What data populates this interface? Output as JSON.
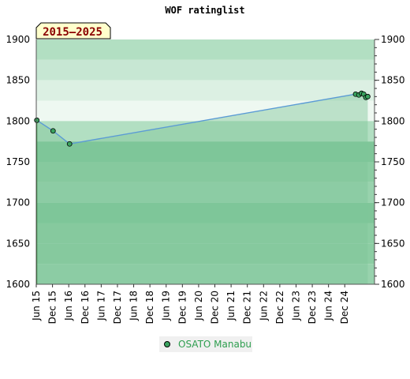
{
  "chart_data": {
    "type": "line",
    "title": "WOF ratinglist",
    "badge": "2015–2025",
    "ylim": [
      1600,
      1900
    ],
    "yticks": [
      1600,
      1650,
      1700,
      1750,
      1800,
      1850,
      1900
    ],
    "x_tick_labels": [
      "Jun 15",
      "Dec 15",
      "Jun 16",
      "Dec 16",
      "Jun 17",
      "Dec 17",
      "Jun 18",
      "Dec 18",
      "Jun 19",
      "Dec 19",
      "Jun 20",
      "Dec 20",
      "Jun 21",
      "Dec 21",
      "Jun 22",
      "Dec 22",
      "Jun 23",
      "Dec 23",
      "Jun 24",
      "Dec 24"
    ],
    "x_tick_months": [
      0,
      6,
      12,
      18,
      24,
      30,
      36,
      42,
      48,
      54,
      60,
      66,
      72,
      78,
      84,
      90,
      96,
      102,
      108,
      114
    ],
    "x_range_months": [
      0,
      125
    ],
    "series": [
      {
        "name": "OSATO Manabu",
        "points": [
          {
            "month": 0.2,
            "rating": 1801
          },
          {
            "month": 6.2,
            "rating": 1788
          },
          {
            "month": 12.3,
            "rating": 1772
          },
          {
            "month": 118.0,
            "rating": 1833
          },
          {
            "month": 119.2,
            "rating": 1832
          },
          {
            "month": 120.2,
            "rating": 1834
          },
          {
            "month": 121.0,
            "rating": 1833
          },
          {
            "month": 121.8,
            "rating": 1829
          },
          {
            "month": 122.5,
            "rating": 1830
          }
        ]
      }
    ],
    "bands": [
      {
        "from": 1875,
        "to": 1900,
        "color": "#b2dfc2"
      },
      {
        "from": 1850,
        "to": 1875,
        "color": "#c7e7d3"
      },
      {
        "from": 1825,
        "to": 1850,
        "color": "#dcf0e3"
      },
      {
        "from": 1800,
        "to": 1825,
        "color": "#eef8f1"
      },
      {
        "from": 1775,
        "to": 1800,
        "color": "#b2dfc2"
      },
      {
        "from": 1750,
        "to": 1775,
        "color": "#7fc699"
      },
      {
        "from": 1725,
        "to": 1750,
        "color": "#8ccda3"
      },
      {
        "from": 1700,
        "to": 1725,
        "color": "#98d2ad"
      },
      {
        "from": 1675,
        "to": 1700,
        "color": "#7fc699"
      },
      {
        "from": 1650,
        "to": 1675,
        "color": "#8ccda3"
      },
      {
        "from": 1625,
        "to": 1650,
        "color": "#8ccda3"
      },
      {
        "from": 1600,
        "to": 1625,
        "color": "#98d2ad"
      }
    ],
    "colors": {
      "line": "#5b9bd5",
      "fill": "#7fc699",
      "fill_opacity": 0.45,
      "marker": "#3aa35f",
      "legend_bg": "#f0f0f0",
      "badge_bg": "#ffffcc"
    },
    "legend_position": "bottom-center",
    "grid": false
  }
}
